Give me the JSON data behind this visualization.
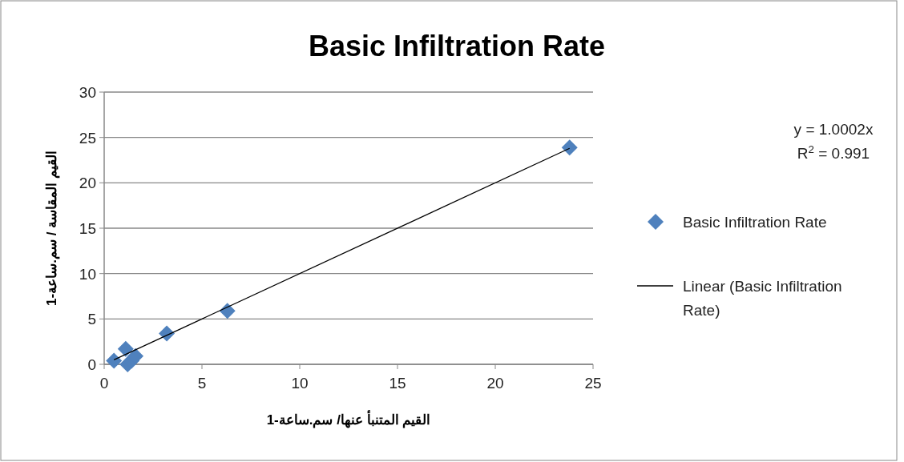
{
  "chart_data": {
    "type": "scatter",
    "title": "Basic Infiltration Rate",
    "xlabel": "القيم المتنبأ عنها/ سم.ساعة-1",
    "ylabel": "القيم المقاسة / سم.ساعة-1",
    "annotations": [
      "y = 1.0002x",
      "R$^{2}$ = 0.991"
    ],
    "xlim": [
      0,
      25
    ],
    "xticks": [
      0,
      5,
      10,
      15,
      20,
      25
    ],
    "ylim": [
      0,
      30
    ],
    "yticks": [
      0,
      5,
      10,
      15,
      20,
      25,
      30
    ],
    "grid": "y",
    "legend": "right",
    "series": [
      {
        "name": "Basic Infiltration Rate",
        "marker": "diamond",
        "color": "#4f81bd",
        "x": [
          0.5,
          1.1,
          1.2,
          1.4,
          1.6,
          3.2,
          6.3,
          23.8
        ],
        "values": [
          0.4,
          1.7,
          0.0,
          0.4,
          0.9,
          3.4,
          5.9,
          23.9
        ]
      },
      {
        "name": "Linear (Basic Infiltration Rate)",
        "type": "line",
        "marker": "none",
        "color": "#000000",
        "x": [
          0.5,
          23.8
        ],
        "values": [
          0.5,
          23.8
        ]
      }
    ]
  }
}
